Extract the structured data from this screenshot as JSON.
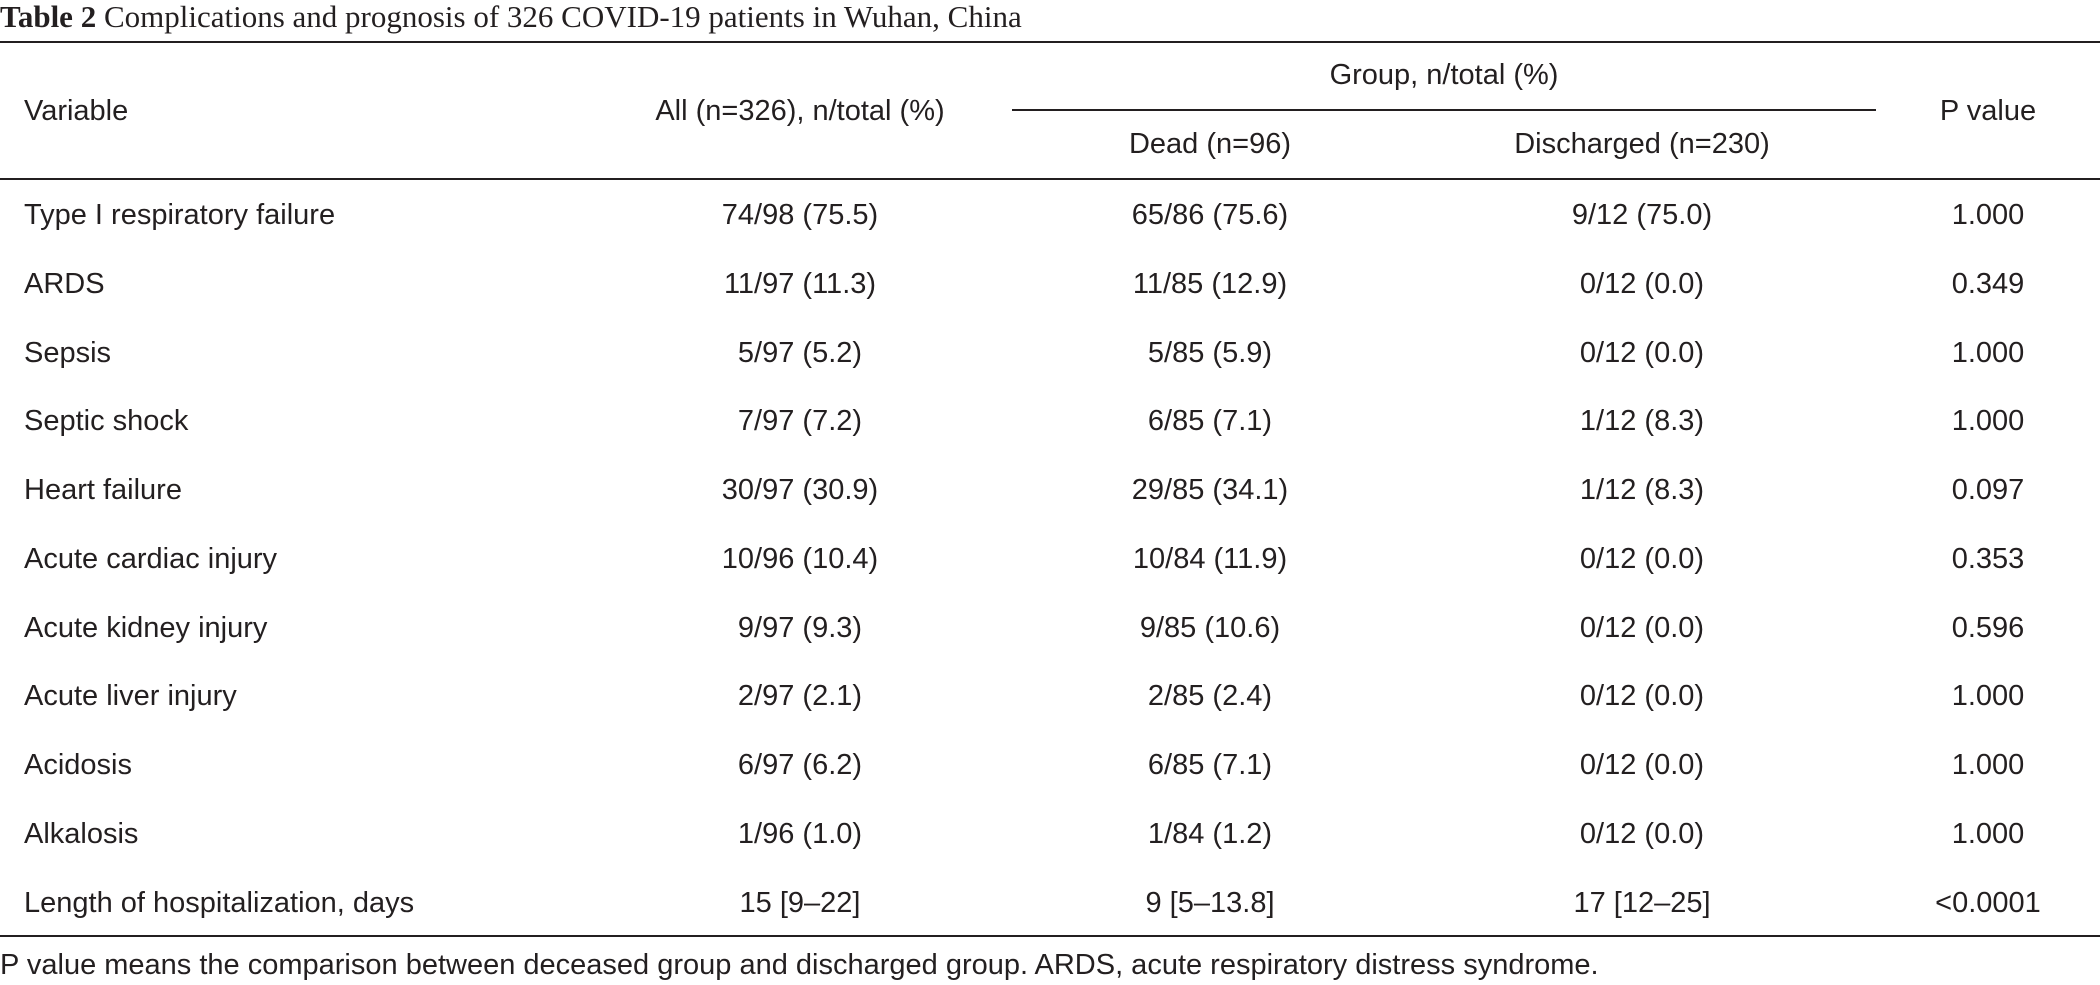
{
  "caption": {
    "label": "Table 2",
    "text": "Complications and prognosis of 326 COVID-19 patients in Wuhan, China"
  },
  "headers": {
    "variable": "Variable",
    "all": "All (n=326), n/total (%)",
    "group": "Group, n/total (%)",
    "dead": "Dead (n=96)",
    "discharged": "Discharged (n=230)",
    "p_value": "P value"
  },
  "rows": [
    {
      "variable": "Type I respiratory failure",
      "all": "74/98 (75.5)",
      "dead": "65/86 (75.6)",
      "discharged": "9/12 (75.0)",
      "p": "1.000"
    },
    {
      "variable": "ARDS",
      "all": "11/97 (11.3)",
      "dead": "11/85 (12.9)",
      "discharged": "0/12 (0.0)",
      "p": "0.349"
    },
    {
      "variable": "Sepsis",
      "all": "5/97 (5.2)",
      "dead": "5/85 (5.9)",
      "discharged": "0/12 (0.0)",
      "p": "1.000"
    },
    {
      "variable": "Septic shock",
      "all": "7/97 (7.2)",
      "dead": "6/85 (7.1)",
      "discharged": "1/12 (8.3)",
      "p": "1.000"
    },
    {
      "variable": "Heart failure",
      "all": "30/97 (30.9)",
      "dead": "29/85 (34.1)",
      "discharged": "1/12 (8.3)",
      "p": "0.097"
    },
    {
      "variable": "Acute cardiac injury",
      "all": "10/96 (10.4)",
      "dead": "10/84 (11.9)",
      "discharged": "0/12 (0.0)",
      "p": "0.353"
    },
    {
      "variable": "Acute kidney injury",
      "all": "9/97 (9.3)",
      "dead": "9/85 (10.6)",
      "discharged": "0/12 (0.0)",
      "p": "0.596"
    },
    {
      "variable": "Acute liver injury",
      "all": "2/97 (2.1)",
      "dead": "2/85 (2.4)",
      "discharged": "0/12 (0.0)",
      "p": "1.000"
    },
    {
      "variable": "Acidosis",
      "all": "6/97 (6.2)",
      "dead": "6/85 (7.1)",
      "discharged": "0/12 (0.0)",
      "p": "1.000"
    },
    {
      "variable": "Alkalosis",
      "all": "1/96 (1.0)",
      "dead": "1/84 (1.2)",
      "discharged": "0/12 (0.0)",
      "p": "1.000"
    },
    {
      "variable": "Length of hospitalization, days",
      "all": "15 [9–22]",
      "dead": "9 [5–13.8]",
      "discharged": "17 [12–25]",
      "p": "<0.0001"
    }
  ],
  "footnote": "P value means the comparison between deceased group and discharged group. ARDS, acute respiratory distress syndrome."
}
